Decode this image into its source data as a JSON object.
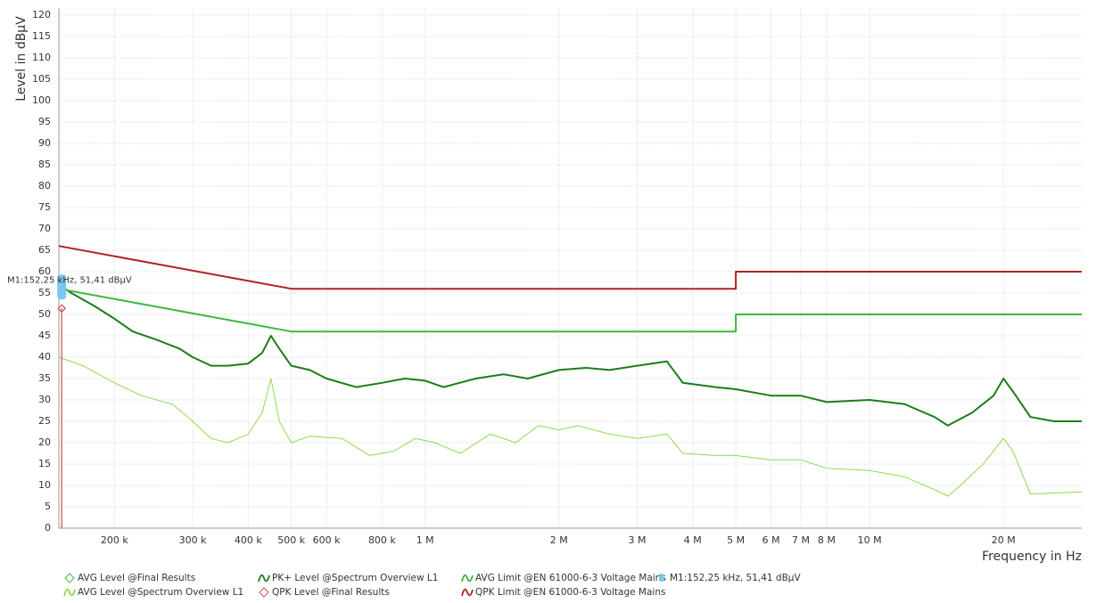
{
  "chart_data": {
    "type": "line",
    "x_label": "Frequency in Hz",
    "y_label": "Level in dBµV",
    "xlog": true,
    "grid": true,
    "xlim": [
      150000,
      30000000
    ],
    "ylim": [
      0,
      120
    ],
    "xticks": [
      {
        "value": 200000,
        "label": "200 k"
      },
      {
        "value": 300000,
        "label": "300 k"
      },
      {
        "value": 400000,
        "label": "400 k"
      },
      {
        "value": 500000,
        "label": "500 k"
      },
      {
        "value": 600000,
        "label": "600 k"
      },
      {
        "value": 800000,
        "label": "800 k"
      },
      {
        "value": 1000000,
        "label": "1 M"
      },
      {
        "value": 2000000,
        "label": "2 M"
      },
      {
        "value": 3000000,
        "label": "3 M"
      },
      {
        "value": 4000000,
        "label": "4 M"
      },
      {
        "value": 5000000,
        "label": "5 M"
      },
      {
        "value": 6000000,
        "label": "6 M"
      },
      {
        "value": 7000000,
        "label": "7 M"
      },
      {
        "value": 8000000,
        "label": "8 M"
      },
      {
        "value": 10000000,
        "label": "10 M"
      },
      {
        "value": 20000000,
        "label": "20 M"
      }
    ],
    "yticks": [
      0,
      5,
      10,
      15,
      20,
      25,
      30,
      35,
      40,
      45,
      50,
      55,
      60,
      65,
      70,
      75,
      80,
      85,
      90,
      95,
      100,
      105,
      110,
      115,
      120
    ],
    "series": [
      {
        "name": "AVG Level @Final Results",
        "color": "#3db83d",
        "marker": "diamond",
        "x": [
          152250
        ],
        "values": [
          56.5
        ]
      },
      {
        "name": "AVG Level @Spectrum Overview L1",
        "color": "#8fd94f",
        "x": [
          150000,
          170000,
          200000,
          230000,
          270000,
          300000,
          330000,
          360000,
          400000,
          430000,
          450000,
          470000,
          500000,
          550000,
          650000,
          750000,
          850000,
          950000,
          1050000,
          1200000,
          1400000,
          1600000,
          1800000,
          2000000,
          2200000,
          2600000,
          3000000,
          3500000,
          3800000,
          4500000,
          5000000,
          6000000,
          7000000,
          8000000,
          10000000,
          12000000,
          14000000,
          15000000,
          16000000,
          18000000,
          20000000,
          21000000,
          23000000,
          30000000
        ],
        "values": [
          40,
          38,
          34,
          31,
          29,
          25,
          21,
          20,
          22,
          27,
          35,
          25,
          20,
          21.5,
          21,
          17,
          18,
          21,
          20,
          17.5,
          22,
          20,
          24,
          23,
          24,
          22,
          21,
          22,
          17.5,
          17,
          17,
          16,
          16,
          14,
          13.5,
          12,
          9,
          7.5,
          10,
          15,
          21,
          18,
          8,
          8.5
        ]
      },
      {
        "name": "PK+ Level @Spectrum Overview L1",
        "color": "#1b7d1b",
        "x": [
          150000,
          160000,
          180000,
          200000,
          220000,
          250000,
          280000,
          300000,
          330000,
          360000,
          400000,
          430000,
          450000,
          470000,
          500000,
          550000,
          600000,
          700000,
          800000,
          900000,
          1000000,
          1100000,
          1300000,
          1500000,
          1700000,
          2000000,
          2300000,
          2600000,
          3000000,
          3500000,
          3800000,
          4500000,
          5000000,
          6000000,
          7000000,
          8000000,
          10000000,
          12000000,
          14000000,
          15000000,
          17000000,
          19000000,
          20000000,
          21000000,
          23000000,
          26000000,
          30000000
        ],
        "values": [
          57,
          55,
          52,
          49,
          46,
          44,
          42,
          40,
          38,
          38,
          38.5,
          41,
          45,
          42,
          38,
          37,
          35,
          33,
          34,
          35,
          34.5,
          33,
          35,
          36,
          35,
          37,
          37.5,
          37,
          38,
          39,
          34,
          33,
          32.5,
          31,
          31,
          29.5,
          30,
          29,
          26,
          24,
          27,
          31,
          35,
          32,
          26,
          25,
          25
        ]
      },
      {
        "name": "QPK Level @Final Results",
        "color": "#d05050",
        "marker": "diamond",
        "x": [
          152250
        ],
        "values": [
          51.41
        ]
      },
      {
        "name": "AVG Limit @EN 61000-6-3 Voltage Mains",
        "color": "#3db83d",
        "x": [
          150000,
          500000,
          5000000,
          5000000,
          30000000
        ],
        "values": [
          56,
          46,
          46,
          50,
          50
        ]
      },
      {
        "name": "QPK Limit @EN 61000-6-3 Voltage Mains",
        "color": "#b22222",
        "x": [
          150000,
          500000,
          5000000,
          5000000,
          30000000
        ],
        "values": [
          66,
          56,
          56,
          60,
          60
        ]
      }
    ],
    "markers": [
      {
        "label": "M1:152,25 kHz, 51,41 dBµV",
        "x": 152250,
        "value": 51.41,
        "color": "#7cc6ee"
      }
    ]
  }
}
